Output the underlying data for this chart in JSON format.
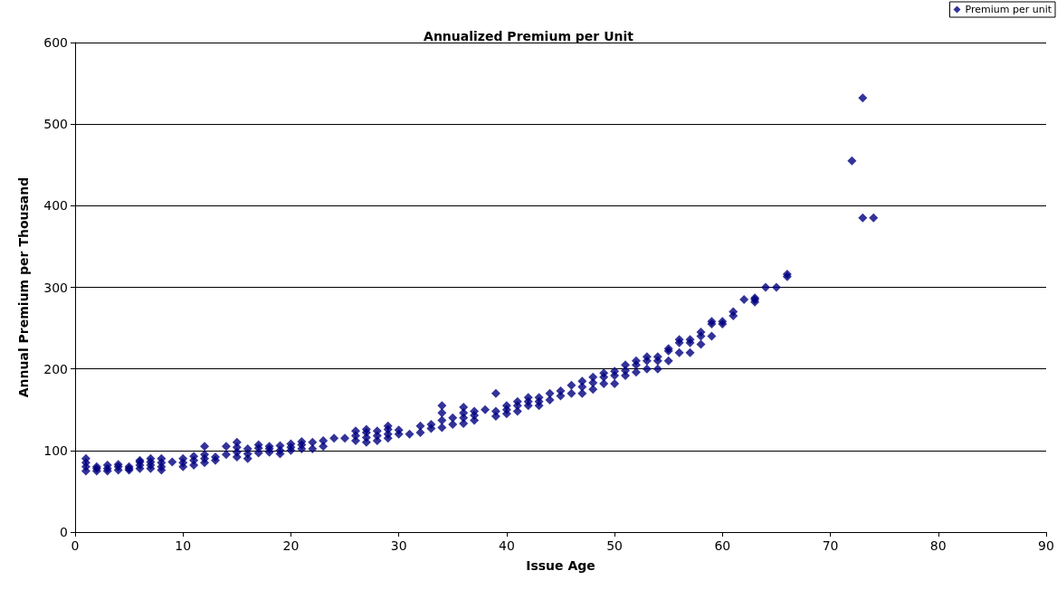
{
  "chart_data": {
    "type": "scatter",
    "title": "Annualized Premium per Unit",
    "xlabel": "Issue Age",
    "ylabel": "Annual Premium per Thousand",
    "series": [
      {
        "name": "Premium per unit",
        "color": "#000080",
        "x": [
          1,
          1,
          1,
          1,
          2,
          2,
          2,
          3,
          3,
          3,
          4,
          4,
          4,
          5,
          5,
          5,
          6,
          6,
          6,
          6,
          7,
          7,
          7,
          7,
          8,
          8,
          8,
          8,
          9,
          10,
          10,
          10,
          11,
          11,
          11,
          12,
          12,
          12,
          12,
          13,
          13,
          14,
          14,
          15,
          15,
          15,
          15,
          16,
          16,
          16,
          17,
          17,
          17,
          18,
          18,
          18,
          19,
          19,
          19,
          20,
          20,
          20,
          21,
          21,
          21,
          22,
          22,
          23,
          23,
          24,
          25,
          26,
          26,
          26,
          27,
          27,
          27,
          27,
          28,
          28,
          28,
          29,
          29,
          29,
          29,
          30,
          30,
          31,
          32,
          32,
          33,
          33,
          34,
          34,
          34,
          34,
          35,
          35,
          36,
          36,
          36,
          36,
          37,
          37,
          37,
          38,
          39,
          39,
          39,
          40,
          40,
          40,
          41,
          41,
          41,
          42,
          42,
          42,
          43,
          43,
          43,
          44,
          44,
          45,
          45,
          46,
          46,
          47,
          47,
          47,
          48,
          48,
          48,
          49,
          49,
          49,
          50,
          50,
          50,
          51,
          51,
          51,
          52,
          52,
          52,
          53,
          53,
          53,
          54,
          54,
          54,
          55,
          55,
          55,
          56,
          56,
          56,
          57,
          57,
          57,
          58,
          58,
          58,
          59,
          59,
          59,
          60,
          60,
          61,
          61,
          62,
          63,
          63,
          63,
          64,
          65,
          66,
          66,
          72,
          73,
          73,
          74
        ],
        "values": [
          75,
          80,
          85,
          90,
          75,
          78,
          80,
          75,
          78,
          82,
          76,
          80,
          83,
          76,
          78,
          80,
          78,
          82,
          86,
          88,
          78,
          82,
          86,
          90,
          76,
          80,
          85,
          90,
          86,
          80,
          85,
          90,
          82,
          88,
          93,
          85,
          90,
          95,
          105,
          88,
          92,
          95,
          105,
          92,
          98,
          104,
          110,
          90,
          96,
          102,
          97,
          103,
          107,
          98,
          102,
          105,
          96,
          100,
          106,
          100,
          104,
          108,
          102,
          107,
          111,
          102,
          110,
          105,
          112,
          115,
          115,
          112,
          118,
          124,
          110,
          116,
          122,
          126,
          112,
          118,
          124,
          115,
          120,
          126,
          130,
          120,
          125,
          120,
          122,
          130,
          127,
          132,
          128,
          137,
          146,
          155,
          132,
          140,
          133,
          140,
          146,
          153,
          137,
          143,
          148,
          150,
          142,
          148,
          170,
          145,
          150,
          155,
          148,
          155,
          160,
          155,
          160,
          165,
          155,
          160,
          165,
          162,
          170,
          167,
          173,
          170,
          180,
          170,
          178,
          185,
          175,
          183,
          190,
          182,
          190,
          195,
          182,
          192,
          197,
          192,
          198,
          205,
          196,
          205,
          210,
          200,
          210,
          215,
          200,
          210,
          215,
          210,
          222,
          225,
          220,
          232,
          236,
          220,
          232,
          236,
          230,
          240,
          245,
          240,
          255,
          258,
          255,
          258,
          265,
          270,
          285,
          282,
          285,
          287,
          300,
          300,
          313,
          316,
          455,
          532,
          385,
          385
        ]
      }
    ],
    "xlim": [
      0,
      90
    ],
    "xticks": [
      0,
      10,
      20,
      30,
      40,
      50,
      60,
      70,
      80,
      90
    ],
    "ylim": [
      0,
      600
    ],
    "yticks": [
      0,
      100,
      200,
      300,
      400,
      500,
      600
    ],
    "grid": "y",
    "legend": "top right",
    "marker": "diamond"
  }
}
